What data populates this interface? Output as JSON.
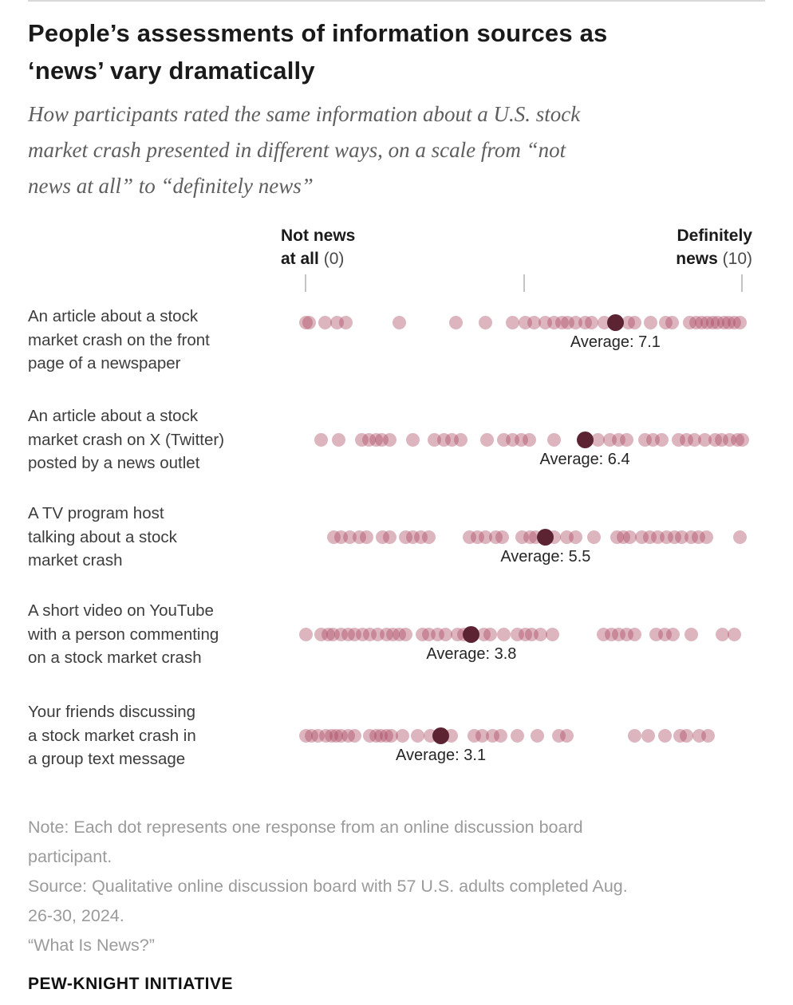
{
  "header": {
    "title": "People’s assessments of information sources as\n‘news’ vary dramatically",
    "subtitle": "How participants rated the same information about a U.S. stock\nmarket crash presented in different ways, on a scale from “not\nnews at all” to “definitely news”"
  },
  "axis": {
    "left": {
      "line1": "Not news",
      "line2": "at all",
      "suffix": "(0)"
    },
    "right": {
      "line1": "Definitely",
      "line2": "news",
      "suffix": "(10)"
    }
  },
  "chart_data": {
    "type": "scatter",
    "subtype": "dot-strip-plot",
    "title": "People’s assessments of information sources as ‘news’ vary dramatically",
    "x_range": [
      0,
      10
    ],
    "x_ticks": [
      0,
      5,
      10
    ],
    "x_label_min": "Not news at all (0)",
    "x_label_max": "Definitely news (10)",
    "legend": "Each light dot = one participant response; dark dot = average rating",
    "colors": {
      "dot": "#aa465f",
      "dot_opacity": 0.4,
      "average_dot": "#5c2433"
    },
    "series": [
      {
        "label": "An article about a stock\nmarket crash on the front\npage of a newspaper",
        "average": 7.1,
        "average_label": "Average: 7.1",
        "responses": [
          0,
          0.08,
          0.45,
          0.72,
          0.92,
          2.15,
          3.45,
          4.13,
          4.74,
          5.04,
          5.23,
          5.5,
          5.69,
          5.88,
          6.0,
          6.18,
          6.41,
          6.56,
          6.85,
          7.4,
          7.55,
          7.9,
          8.25,
          8.4,
          8.8,
          8.95,
          9.08,
          9.2,
          9.33,
          9.45,
          9.58,
          9.7,
          9.82,
          9.95
        ]
      },
      {
        "label": "An article about a stock\nmarket crash on X (Twitter)\nposted by a news outlet",
        "average": 6.4,
        "average_label": "Average: 6.4",
        "responses": [
          0.35,
          0.75,
          1.28,
          1.45,
          1.62,
          1.75,
          1.92,
          2.45,
          2.95,
          3.18,
          3.35,
          3.55,
          4.15,
          4.55,
          4.75,
          4.95,
          5.12,
          5.7,
          6.7,
          6.98,
          7.17,
          7.36,
          7.78,
          7.97,
          8.16,
          8.54,
          8.73,
          8.92,
          9.15,
          9.38,
          9.53,
          9.72,
          9.9,
          10
        ]
      },
      {
        "label": "A TV program host\ntalking about a stock\nmarket crash",
        "average": 5.5,
        "average_label": "Average: 5.5",
        "responses": [
          0.64,
          0.82,
          1.01,
          1.24,
          1.39,
          1.77,
          1.92,
          2.3,
          2.45,
          2.64,
          2.83,
          3.75,
          3.94,
          4.13,
          4.36,
          4.51,
          4.96,
          5.15,
          5.28,
          5.69,
          5.99,
          6.18,
          6.6,
          7.13,
          7.28,
          7.44,
          7.7,
          7.89,
          8.08,
          8.27,
          8.46,
          8.62,
          8.84,
          9.0,
          9.19,
          9.95
        ]
      },
      {
        "label": "A short video on YouTube\nwith a person commenting\non a stock market crash",
        "average": 3.8,
        "average_label": "Average: 3.8",
        "responses": [
          0,
          0.36,
          0.52,
          0.63,
          0.82,
          0.97,
          1.12,
          1.31,
          1.48,
          1.66,
          1.85,
          2.0,
          2.15,
          2.3,
          2.68,
          2.83,
          3.02,
          3.21,
          3.48,
          3.63,
          4.09,
          4.24,
          4.55,
          4.85,
          5.04,
          5.19,
          5.38,
          5.65,
          6.83,
          7.02,
          7.17,
          7.36,
          7.55,
          8.04,
          8.24,
          8.42,
          8.84,
          9.56,
          9.83
        ]
      },
      {
        "label": "Your friends discussing\na stock market crash in\na group text message",
        "average": 3.1,
        "average_label": "Average: 3.1",
        "responses": [
          0,
          0.13,
          0.29,
          0.46,
          0.59,
          0.7,
          0.82,
          0.97,
          1.12,
          1.47,
          1.62,
          1.73,
          1.85,
          1.96,
          2.23,
          2.57,
          2.87,
          3.33,
          3.86,
          4.05,
          4.28,
          4.47,
          4.85,
          5.31,
          5.8,
          5.99,
          7.55,
          7.85,
          8.24,
          8.58,
          8.73,
          9.03,
          9.22
        ]
      }
    ]
  },
  "footer": {
    "note": "Note: Each dot represents one response from an online discussion board\nparticipant.",
    "source": "Source: Qualitative online discussion board with 57 U.S. adults completed Aug.\n26-30, 2024.",
    "quote": "“What Is News?”",
    "brand": "PEW-KNIGHT INITIATIVE"
  }
}
